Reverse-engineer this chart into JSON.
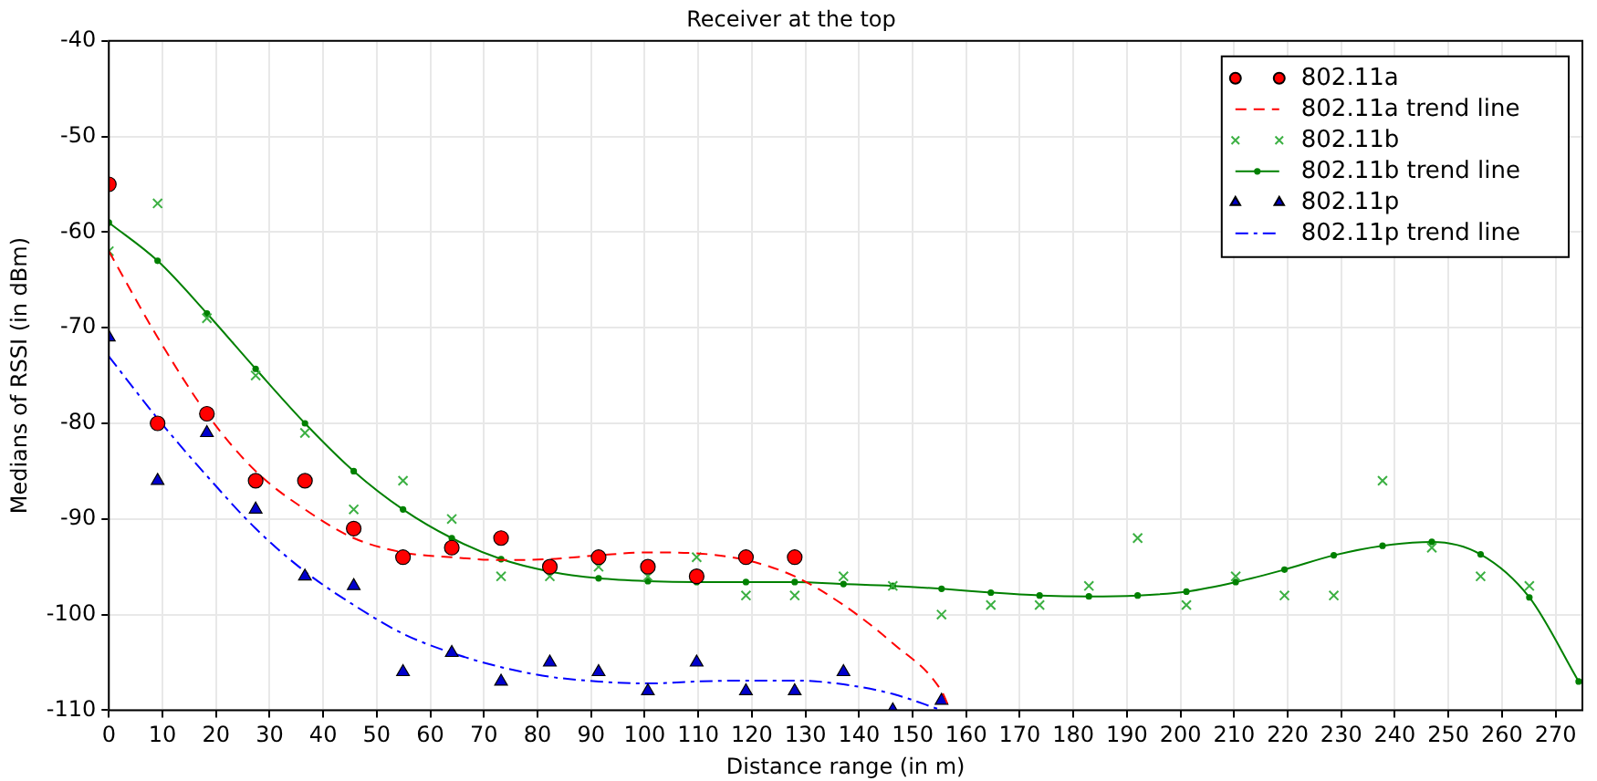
{
  "chart_data": {
    "type": "scatter",
    "title": "Receiver at the top",
    "xlabel": "Distance range (in m)",
    "ylabel": "Medians of RSSI (in dBm)",
    "xlim": [
      0,
      275
    ],
    "xticks": [
      0,
      10,
      20,
      30,
      40,
      50,
      60,
      70,
      80,
      90,
      100,
      110,
      120,
      130,
      140,
      150,
      160,
      170,
      180,
      190,
      200,
      210,
      220,
      230,
      240,
      250,
      260,
      270
    ],
    "ylim": [
      -110,
      -40
    ],
    "yticks": [
      -110,
      -100,
      -90,
      -80,
      -70,
      -60,
      -50,
      -40
    ],
    "grid": true,
    "legend": "top right",
    "series": [
      {
        "name": "802.11a",
        "type": "scatter",
        "color": "#ff0000",
        "marker": "circle",
        "x": [
          0,
          9.1,
          18.3,
          27.4,
          36.6,
          45.7,
          54.9,
          64,
          73.2,
          82.3,
          91.4,
          100.6,
          109.7,
          118.9,
          128
        ],
        "values": [
          -55,
          -80,
          -79,
          -86,
          -86,
          -91,
          -94,
          -93,
          -92,
          -95,
          -94,
          -95,
          -96,
          -94,
          -94
        ]
      },
      {
        "name": "802.11a trend line",
        "type": "line",
        "color": "#ff0000",
        "marker": "none",
        "line_style": "dashed",
        "x": [
          0,
          9.1,
          18.3,
          27.4,
          36.6,
          45.7,
          54.9,
          64,
          73.2,
          82.3,
          91.4,
          100.6,
          109.7,
          118.9,
          128,
          137.1,
          146.3,
          155.4,
          157
        ],
        "values": [
          -62,
          -71,
          -79,
          -85,
          -89,
          -92,
          -93.5,
          -94,
          -94.3,
          -94.2,
          -93.8,
          -93.5,
          -93.6,
          -94.3,
          -96,
          -99,
          -103,
          -108,
          -110
        ]
      },
      {
        "name": "802.11b",
        "type": "scatter",
        "color": "#3cb043",
        "marker": "cross",
        "x": [
          0,
          9.1,
          18.3,
          27.4,
          36.6,
          45.7,
          54.9,
          64,
          73.2,
          82.3,
          91.4,
          100.6,
          109.7,
          118.9,
          128,
          137.1,
          146.3,
          155.4,
          164.6,
          173.7,
          182.9,
          192,
          201.1,
          210.3,
          219.4,
          228.6,
          237.7,
          246.9,
          256,
          265.1
        ],
        "values": [
          -62,
          -57,
          -69,
          -75,
          -81,
          -89,
          -86,
          -90,
          -96,
          -96,
          -95,
          -96,
          -94,
          -98,
          -98,
          -96,
          -97,
          -100,
          -99,
          -99,
          -97,
          -92,
          -99,
          -96,
          -98,
          -98,
          -86,
          -93,
          -96,
          -97
        ]
      },
      {
        "name": "802.11b trend line",
        "type": "line",
        "color": "#008000",
        "marker": "circle",
        "line_style": "solid",
        "x": [
          0,
          9.1,
          18.3,
          27.4,
          36.6,
          45.7,
          54.9,
          64,
          73.2,
          82.3,
          91.4,
          100.6,
          109.7,
          118.9,
          128,
          137.1,
          146.3,
          155.4,
          164.6,
          173.7,
          182.9,
          192,
          201.1,
          210.3,
          219.4,
          228.6,
          237.7,
          246.9,
          256,
          265.1,
          274.3
        ],
        "values": [
          -59,
          -63,
          -68.5,
          -74.3,
          -80,
          -85,
          -89,
          -92,
          -94.2,
          -95.5,
          -96.2,
          -96.5,
          -96.6,
          -96.6,
          -96.6,
          -96.8,
          -97,
          -97.3,
          -97.7,
          -98,
          -98.1,
          -98,
          -97.6,
          -96.6,
          -95.3,
          -93.8,
          -92.8,
          -92.4,
          -93.7,
          -98.2,
          -107
        ]
      },
      {
        "name": "802.11p",
        "type": "scatter",
        "color": "#0000cc",
        "marker": "triangle",
        "x": [
          0,
          9.1,
          18.3,
          27.4,
          36.6,
          45.7,
          54.9,
          64,
          73.2,
          82.3,
          91.4,
          100.6,
          109.7,
          118.9,
          128,
          137.1,
          146.3,
          155.4
        ],
        "values": [
          -71,
          -86,
          -81,
          -89,
          -96,
          -97,
          -106,
          -104,
          -107,
          -105,
          -106,
          -108,
          -105,
          -108,
          -108,
          -106,
          -110,
          -109
        ]
      },
      {
        "name": "802.11p trend line",
        "type": "line",
        "color": "#0000ff",
        "marker": "none",
        "line_style": "dashdot",
        "x": [
          0,
          9.1,
          18.3,
          27.4,
          36.6,
          45.7,
          54.9,
          64,
          73.2,
          82.3,
          91.4,
          100.6,
          109.7,
          118.9,
          128,
          137.1,
          146.3,
          155.4
        ],
        "values": [
          -73,
          -79.5,
          -85.5,
          -91,
          -95.5,
          -99,
          -102,
          -104,
          -105.5,
          -106.5,
          -107,
          -107.2,
          -107,
          -106.9,
          -106.9,
          -107.3,
          -108.3,
          -110
        ]
      }
    ]
  }
}
